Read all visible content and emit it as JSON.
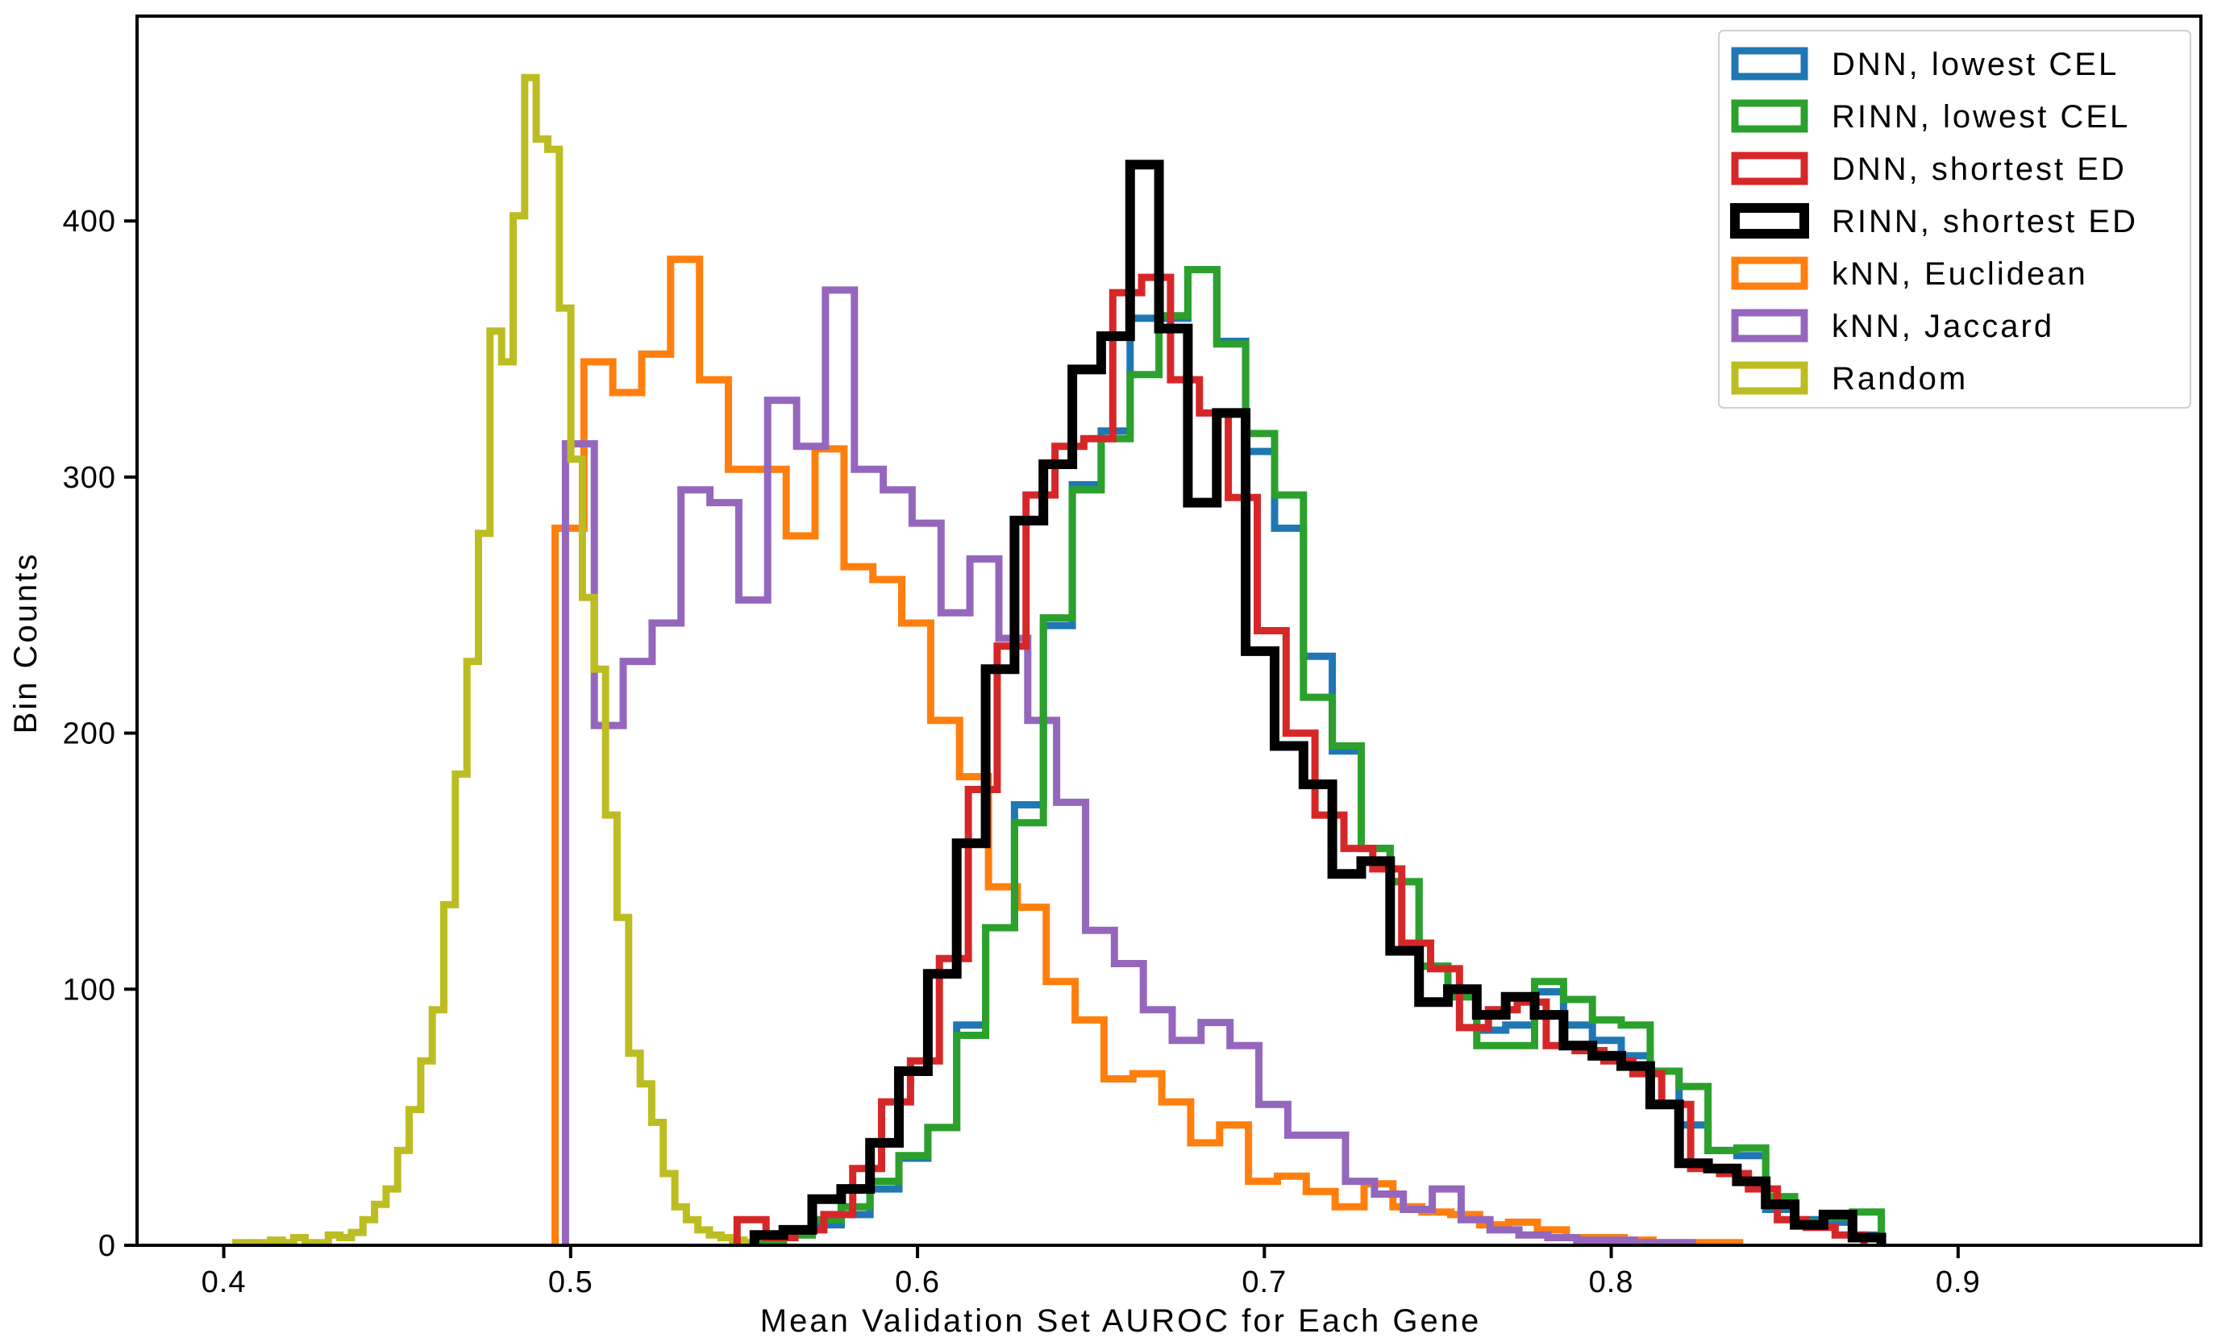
{
  "chart_data": {
    "type": "histogram",
    "title": "",
    "xlabel": "Mean Validation Set AUROC for Each Gene",
    "ylabel": "Bin Counts",
    "xlim": [
      0.375,
      0.97
    ],
    "ylim": [
      0,
      480
    ],
    "xticks": [
      0.4,
      0.5,
      0.6,
      0.7,
      0.8,
      0.9
    ],
    "xtick_labels": [
      "0.4",
      "0.5",
      "0.6",
      "0.7",
      "0.8",
      "0.9"
    ],
    "yticks": [
      0,
      100,
      200,
      300,
      400
    ],
    "ytick_labels": [
      "0",
      "100",
      "200",
      "300",
      "400"
    ],
    "grid": false,
    "legend_position": "top-right",
    "series": [
      {
        "name": "DNN, lowest CEL",
        "color": "#1f77b4",
        "line_width": 9,
        "bin_width": 0.00833,
        "start": 0.553,
        "counts": [
          2,
          5,
          8,
          12,
          22,
          34,
          46,
          86,
          124,
          172,
          242,
          297,
          318,
          362,
          362,
          381,
          353,
          310,
          280,
          230,
          193,
          155,
          142,
          109,
          97,
          84,
          86,
          99,
          86,
          80,
          74,
          68,
          47,
          37,
          35,
          14,
          10,
          9,
          4
        ]
      },
      {
        "name": "RINN, lowest CEL",
        "color": "#2ca02c",
        "line_width": 9,
        "bin_width": 0.00833,
        "start": 0.553,
        "counts": [
          2,
          4,
          10,
          15,
          25,
          35,
          46,
          82,
          124,
          165,
          245,
          295,
          315,
          340,
          363,
          381,
          352,
          317,
          293,
          214,
          195,
          155,
          142,
          109,
          97,
          78,
          78,
          103,
          96,
          88,
          86,
          68,
          62,
          37,
          38,
          19,
          9,
          11,
          13
        ]
      },
      {
        "name": "DNN, shortest ED",
        "color": "#d62728",
        "line_width": 9,
        "bin_width": 0.00833,
        "start": 0.548,
        "counts": [
          10,
          3,
          6,
          12,
          30,
          56,
          72,
          112,
          178,
          234,
          293,
          312,
          315,
          372,
          378,
          338,
          325,
          292,
          240,
          200,
          168,
          155,
          147,
          118,
          108,
          85,
          92,
          95,
          78,
          76,
          72,
          67,
          55,
          30,
          28,
          22,
          10,
          7,
          4
        ]
      },
      {
        "name": "RINN, shortest ED",
        "color": "#000000",
        "line_width": 12,
        "bin_width": 0.00833,
        "start": 0.553,
        "counts": [
          4,
          6,
          18,
          22,
          40,
          68,
          106,
          157,
          225,
          283,
          305,
          342,
          355,
          422,
          358,
          290,
          325,
          232,
          195,
          180,
          145,
          150,
          115,
          95,
          100,
          90,
          97,
          90,
          78,
          74,
          70,
          55,
          32,
          30,
          25,
          16,
          8,
          12,
          3
        ]
      },
      {
        "name": "kNN, Euclidean",
        "color": "#ff7f0e",
        "line_width": 9,
        "bin_width": 0.00833,
        "start": 0.4955,
        "counts": [
          280,
          345,
          333,
          348,
          385,
          338,
          303,
          303,
          277,
          311,
          265,
          260,
          243,
          205,
          183,
          140,
          132,
          103,
          88,
          65,
          67,
          56,
          40,
          47,
          25,
          27,
          21,
          15,
          24,
          15,
          13,
          12,
          8,
          9,
          6,
          3,
          3,
          2,
          1,
          1,
          1
        ]
      },
      {
        "name": "kNN, Jaccard",
        "color": "#9467bd",
        "line_width": 9,
        "bin_width": 0.00833,
        "start": 0.4985,
        "counts": [
          313,
          203,
          228,
          243,
          295,
          290,
          252,
          330,
          312,
          373,
          303,
          295,
          282,
          247,
          268,
          237,
          205,
          173,
          123,
          110,
          92,
          80,
          87,
          78,
          55,
          43,
          43,
          25,
          20,
          14,
          22,
          10,
          6,
          4,
          3,
          2,
          2,
          1,
          1
        ]
      },
      {
        "name": "Random",
        "color": "#bcbd22",
        "line_width": 9,
        "bin_width": 0.00333,
        "start": 0.4035,
        "counts": [
          1,
          1,
          1,
          2,
          1,
          3,
          1,
          1,
          4,
          3,
          5,
          10,
          16,
          22,
          37,
          53,
          72,
          92,
          133,
          184,
          228,
          278,
          357,
          345,
          402,
          456,
          432,
          428,
          366,
          307,
          253,
          225,
          168,
          128,
          75,
          63,
          48,
          28,
          15,
          10,
          6,
          4,
          3,
          2,
          1,
          1,
          1
        ]
      }
    ]
  }
}
